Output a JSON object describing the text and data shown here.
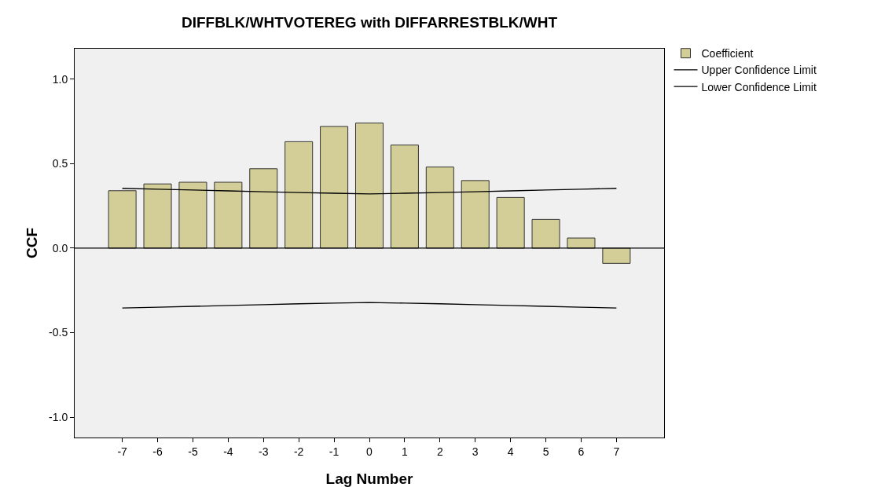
{
  "chart_data": {
    "type": "bar",
    "title": "DIFFBLK/WHTVOTEREG with DIFFARRESTBLK/WHT",
    "xlabel": "Lag Number",
    "ylabel": "CCF",
    "x": [
      -7,
      -6,
      -5,
      -4,
      -3,
      -2,
      -1,
      0,
      1,
      2,
      3,
      4,
      5,
      6,
      7
    ],
    "series": [
      {
        "name": "Coefficient",
        "color": "#d3ce97",
        "values": [
          0.34,
          0.38,
          0.39,
          0.39,
          0.47,
          0.63,
          0.72,
          0.74,
          0.61,
          0.48,
          0.4,
          0.3,
          0.17,
          0.06,
          -0.09
        ]
      },
      {
        "name": "Upper Confidence Limit",
        "type": "line",
        "color": "#000000",
        "values": [
          0.354,
          0.349,
          0.344,
          0.339,
          0.334,
          0.329,
          0.325,
          0.321,
          0.325,
          0.329,
          0.334,
          0.339,
          0.344,
          0.349,
          0.354
        ]
      },
      {
        "name": "Lower Confidence Limit",
        "type": "line",
        "color": "#000000",
        "values": [
          -0.354,
          -0.349,
          -0.344,
          -0.339,
          -0.334,
          -0.329,
          -0.325,
          -0.321,
          -0.325,
          -0.329,
          -0.334,
          -0.339,
          -0.344,
          -0.349,
          -0.354
        ]
      }
    ],
    "xlim": [
      -8.35,
      8.35
    ],
    "xticks": [
      -7,
      -6,
      -5,
      -4,
      -3,
      -2,
      -1,
      0,
      1,
      2,
      3,
      4,
      5,
      6,
      7
    ],
    "ylim": [
      -1.12,
      1.18
    ],
    "yticks": [
      {
        "value": -1,
        "label": "-1.0"
      },
      {
        "value": -0.5,
        "label": "-0.5"
      },
      {
        "value": 0,
        "label": "0.0"
      },
      {
        "value": 0.5,
        "label": "0.5"
      },
      {
        "value": 1,
        "label": "1.0"
      }
    ],
    "ref_lines": [
      {
        "axis": "y",
        "value": 0,
        "color": "#000000"
      }
    ],
    "grid": false,
    "legend": "top right",
    "marker": "none",
    "line_style": "solid"
  }
}
